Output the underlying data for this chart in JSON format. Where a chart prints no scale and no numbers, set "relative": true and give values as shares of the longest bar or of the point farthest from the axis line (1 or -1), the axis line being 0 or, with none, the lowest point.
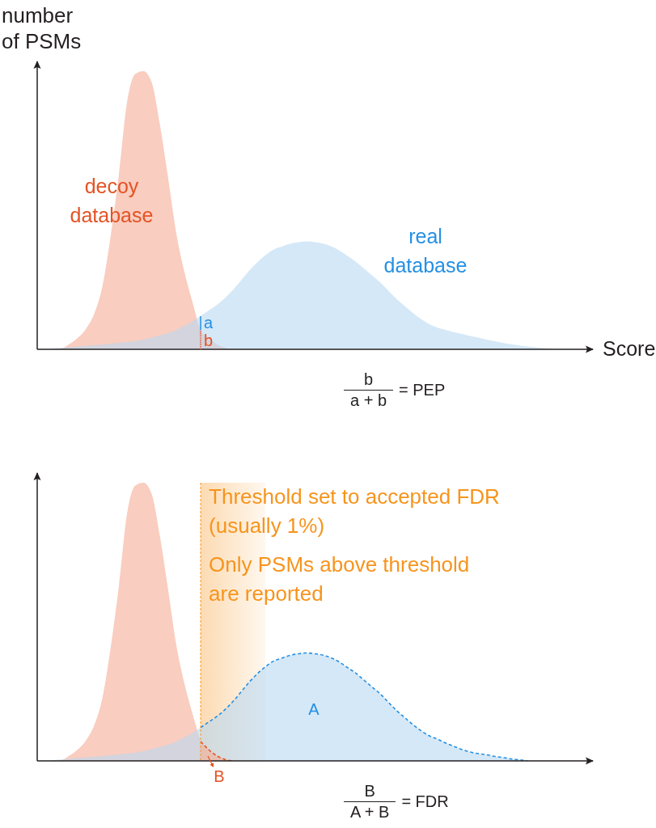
{
  "chart_data": [
    {
      "type": "area",
      "relative": true,
      "ylabel": "number of PSMs",
      "xlabel": "Score",
      "categories": [
        null,
        null,
        null,
        null,
        null,
        null,
        null,
        null,
        null,
        null,
        null,
        null,
        null,
        null,
        null,
        null,
        null,
        null,
        null,
        null,
        null,
        null,
        null,
        null,
        null,
        null,
        null,
        null,
        null,
        null,
        null,
        null,
        null,
        null,
        null,
        null,
        null,
        null,
        null,
        null,
        null,
        null,
        null,
        null,
        null,
        null,
        null,
        null,
        null,
        null,
        null,
        null,
        null,
        null,
        null,
        null,
        null,
        null,
        null,
        null,
        null,
        null,
        null,
        null,
        null,
        null,
        null,
        null
      ],
      "series": [
        {
          "name": "decoy database",
          "color": "#f9cdbf",
          "values": [
            0,
            0,
            0,
            0.003,
            0.02,
            0.042,
            0.075,
            0.13,
            0.23,
            0.41,
            0.63,
            0.89,
            0.99,
            1,
            0.96,
            0.81,
            0.62,
            0.42,
            0.28,
            0.17,
            0.07,
            0.04,
            0.018,
            0.005,
            0,
            0,
            0,
            0,
            0,
            0,
            0,
            0,
            0,
            0,
            0,
            0,
            0,
            0,
            0,
            0,
            0,
            0,
            0,
            0,
            0,
            0,
            0,
            0,
            0,
            0,
            0,
            0,
            0,
            0,
            0,
            0,
            0,
            0,
            0,
            0,
            0,
            0,
            0,
            0,
            0,
            0,
            0,
            0
          ]
        },
        {
          "name": "real database",
          "color": "#d5e8f7",
          "values": [
            0,
            0,
            0.003,
            0.005,
            0.008,
            0.01,
            0.012,
            0.015,
            0.017,
            0.02,
            0.023,
            0.026,
            0.03,
            0.035,
            0.043,
            0.05,
            0.058,
            0.07,
            0.084,
            0.1,
            0.12,
            0.14,
            0.16,
            0.185,
            0.215,
            0.25,
            0.285,
            0.315,
            0.34,
            0.36,
            0.37,
            0.38,
            0.385,
            0.388,
            0.385,
            0.38,
            0.37,
            0.355,
            0.335,
            0.315,
            0.29,
            0.265,
            0.24,
            0.21,
            0.18,
            0.155,
            0.13,
            0.108,
            0.09,
            0.078,
            0.07,
            0.062,
            0.055,
            0.048,
            0.042,
            0.035,
            0.029,
            0.023,
            0.018,
            0.014,
            0.01,
            0.007,
            0.004,
            0.002,
            0,
            0,
            0,
            0
          ]
        }
      ],
      "annotations": [
        "a",
        "b",
        "b",
        "a + b",
        "= PEP"
      ]
    },
    {
      "type": "area",
      "relative": true,
      "categories": [
        null,
        null,
        null,
        null,
        null,
        null,
        null,
        null,
        null,
        null,
        null,
        null,
        null,
        null,
        null,
        null,
        null,
        null,
        null,
        null,
        null,
        null,
        null,
        null,
        null,
        null,
        null,
        null,
        null,
        null,
        null,
        null,
        null,
        null,
        null,
        null,
        null,
        null,
        null,
        null,
        null,
        null,
        null,
        null,
        null,
        null,
        null,
        null,
        null,
        null,
        null,
        null,
        null,
        null,
        null,
        null,
        null,
        null,
        null,
        null,
        null,
        null,
        null,
        null,
        null,
        null,
        null,
        null
      ],
      "series": [
        {
          "color": "#f9cdbf",
          "values": [
            0,
            0,
            0,
            0.003,
            0.02,
            0.042,
            0.075,
            0.13,
            0.23,
            0.41,
            0.63,
            0.89,
            0.99,
            1,
            0.96,
            0.81,
            0.62,
            0.42,
            0.28,
            0.17,
            0.07,
            null,
            null,
            null,
            null,
            null,
            null,
            null,
            null,
            null,
            null,
            null,
            null,
            null,
            null,
            null,
            null,
            null,
            null,
            null,
            null,
            null,
            null,
            null,
            null,
            null,
            null,
            null,
            null,
            null,
            null,
            null,
            null,
            null,
            null,
            null,
            null,
            null,
            null,
            null,
            null,
            null,
            null,
            null,
            null,
            null,
            null,
            null
          ]
        },
        {
          "color": "#d5e8f7",
          "values": [
            0,
            0,
            0.003,
            0.005,
            0.008,
            0.01,
            0.012,
            0.015,
            0.017,
            0.02,
            0.023,
            0.026,
            0.03,
            0.035,
            0.043,
            0.05,
            0.058,
            0.07,
            0.084,
            0.1,
            0.12,
            null,
            null,
            null,
            null,
            null,
            null,
            null,
            null,
            null,
            null,
            null,
            null,
            null,
            null,
            null,
            null,
            null,
            null,
            null,
            null,
            null,
            null,
            null,
            null,
            null,
            null,
            null,
            null,
            null,
            null,
            null,
            null,
            null,
            null,
            null,
            null,
            null,
            null,
            null,
            null,
            null,
            null,
            null,
            null,
            null,
            null,
            null
          ]
        },
        {
          "name": "A",
          "color": "#d5e8f7",
          "line_style": "dashed",
          "values": [
            null,
            null,
            null,
            null,
            null,
            null,
            null,
            null,
            null,
            null,
            null,
            null,
            null,
            null,
            null,
            null,
            null,
            null,
            null,
            null,
            0.12,
            0.14,
            0.16,
            0.185,
            0.215,
            0.25,
            0.285,
            0.315,
            0.34,
            0.36,
            0.37,
            0.38,
            0.385,
            0.388,
            0.385,
            0.38,
            0.37,
            0.355,
            0.335,
            0.315,
            0.29,
            0.265,
            0.24,
            0.21,
            0.18,
            0.155,
            0.13,
            0.108,
            0.09,
            0.078,
            0.064,
            0.052,
            0.041,
            0.032,
            0.026,
            0.022,
            0.016,
            0.012,
            0.007,
            0.004,
            0,
            null,
            null,
            null,
            null,
            null,
            null,
            null
          ]
        },
        {
          "name": "B",
          "color": "#f9cdbf",
          "line_style": "dashed",
          "values": [
            null,
            null,
            null,
            null,
            null,
            null,
            null,
            null,
            null,
            null,
            null,
            null,
            null,
            null,
            null,
            null,
            null,
            null,
            null,
            null,
            0.07,
            0.04,
            0.018,
            0.005,
            0,
            null,
            null,
            null,
            null,
            null,
            null,
            null,
            null,
            null,
            null,
            null,
            null,
            null,
            null,
            null,
            null,
            null,
            null,
            null,
            null,
            null,
            null,
            null,
            null,
            null,
            null,
            null,
            null,
            null,
            null,
            null,
            null,
            null,
            null,
            null,
            null,
            null,
            null,
            null,
            null,
            null,
            null,
            null
          ]
        }
      ],
      "annotations": [
        "Threshold set to accepted FDR (usually 1%)",
        "Only PSMs above threshold are reported",
        "B",
        "A + B",
        "= FDR"
      ]
    }
  ]
}
